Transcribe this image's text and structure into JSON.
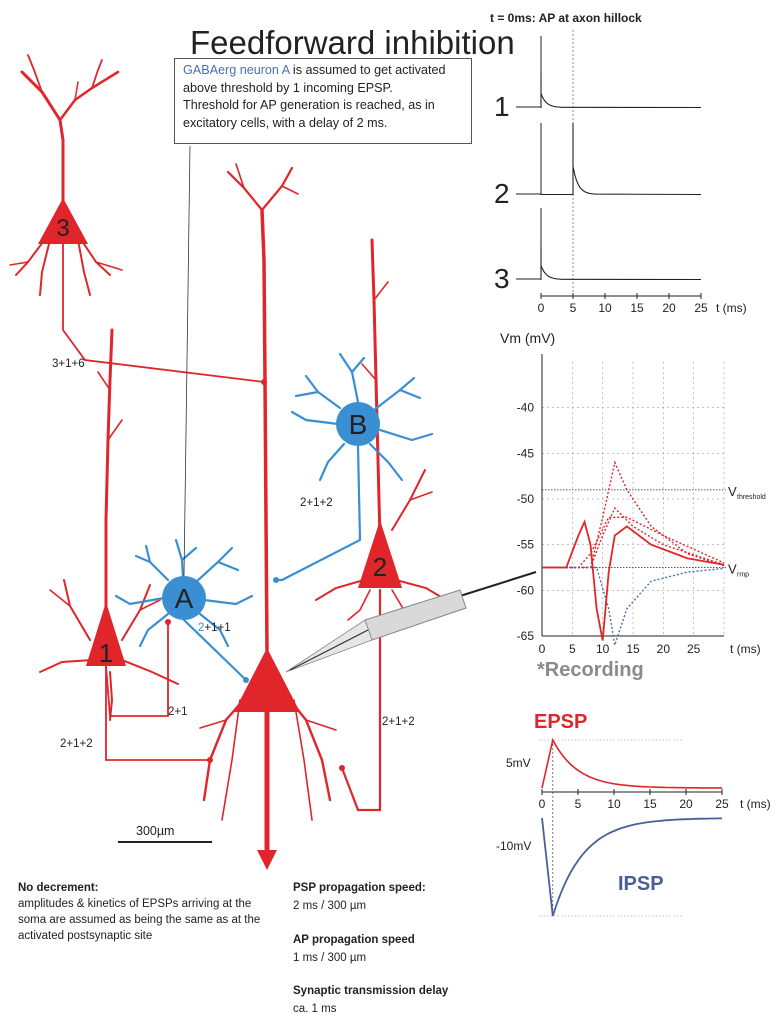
{
  "title": "Feedforward inhibition",
  "note": {
    "highlight": "GABAerg neuron A",
    "line1_rest": " is assumed to get activated",
    "line2": "above threshold by 1 incoming EPSP.",
    "line3": "Threshold for AP generation is reached, as in",
    "line4": "excitatory cells, with a delay of 2 ms."
  },
  "neurons": {
    "n1": "1",
    "n2": "2",
    "n3": "3",
    "nA": "A",
    "nB": "B"
  },
  "path_labels": {
    "p316": "3+1+6",
    "p212_left": "2+1+2",
    "p21": "2+1",
    "p211_prefix": "2",
    "p211_rest": "+1+1",
    "pB": "2+1+2",
    "p2_right": "2+1+2"
  },
  "scale_bar": "300µm",
  "notes_bottom": {
    "no_decrement_title": "No decrement:",
    "no_decrement_l1": "amplitudes & kinetics of EPSPs arriving at the",
    "no_decrement_l2": "soma are assumed as being the same as at the",
    "no_decrement_l3": "activated postsynaptic site",
    "psp_title": "PSP propagation speed:",
    "psp_value": "2 ms / 300 µm",
    "ap_title": "AP propagation speed",
    "ap_value": "1 ms / 300 µm",
    "syn_title": "Synaptic transmission delay",
    "syn_value": "ca. 1 ms"
  },
  "ap_panel": {
    "header": "t = 0ms: AP at axon hillock",
    "trace_labels": [
      "1",
      "2",
      "3"
    ],
    "x_ticks": [
      "0",
      "5",
      "10",
      "15",
      "20",
      "25"
    ],
    "x_unit": "t (ms)"
  },
  "vm_panel": {
    "ylabel": "Vm (mV)",
    "y_ticks": [
      "-40",
      "-45",
      "-50",
      "-55",
      "-60",
      "-65"
    ],
    "x_ticks": [
      "0",
      "5",
      "10",
      "15",
      "20",
      "25"
    ],
    "x_unit": "t (ms)",
    "vthreshold": "V",
    "vthreshold_sub": "threshold",
    "vrmp": "V",
    "vrmp_sub": "rmp",
    "recording": "*Recording"
  },
  "psp_panel": {
    "epsp_label": "EPSP",
    "ipsp_label": "IPSP",
    "epsp_amp": "5mV",
    "ipsp_amp": "-10mV",
    "x_ticks": [
      "0",
      "5",
      "10",
      "15",
      "20",
      "25"
    ],
    "x_unit": "t (ms)"
  },
  "colors": {
    "excitatory": "#e0252b",
    "inhibitory": "#3a8fd2",
    "ipsp_text": "#4a5f95",
    "recording": "#8a8a8a"
  },
  "chart_data": [
    {
      "type": "line",
      "x_range": [
        0,
        25
      ],
      "xlabel": "t (ms)",
      "series": [
        {
          "name": "1",
          "spike_time_ms": 0
        },
        {
          "name": "2",
          "spike_time_ms": 5
        },
        {
          "name": "3",
          "spike_time_ms": 0
        }
      ]
    },
    {
      "type": "line",
      "xlabel": "t (ms)",
      "ylabel": "Vm (mV)",
      "x_range": [
        0,
        30
      ],
      "ylim": [
        -65,
        -35
      ],
      "threshold_mV": -49,
      "rmp_mV": -57.5,
      "series": [
        {
          "x": [
            0,
            4,
            6,
            7,
            8,
            9,
            10,
            11,
            12,
            14,
            18,
            24,
            30
          ],
          "y": [
            -57.5,
            -57.5,
            -54,
            -52.5,
            -55,
            -62,
            -65.5,
            -58,
            -54,
            -53,
            -55,
            -56.5,
            -57.2
          ]
        }
      ]
    },
    {
      "type": "line",
      "xlabel": "t (ms)",
      "x_range": [
        0,
        25
      ],
      "series": [
        {
          "name": "EPSP",
          "amplitude_mV": 5,
          "peak_time_ms": 1.5
        },
        {
          "name": "IPSP",
          "amplitude_mV": -10,
          "peak_time_ms": 1.5
        }
      ]
    }
  ]
}
